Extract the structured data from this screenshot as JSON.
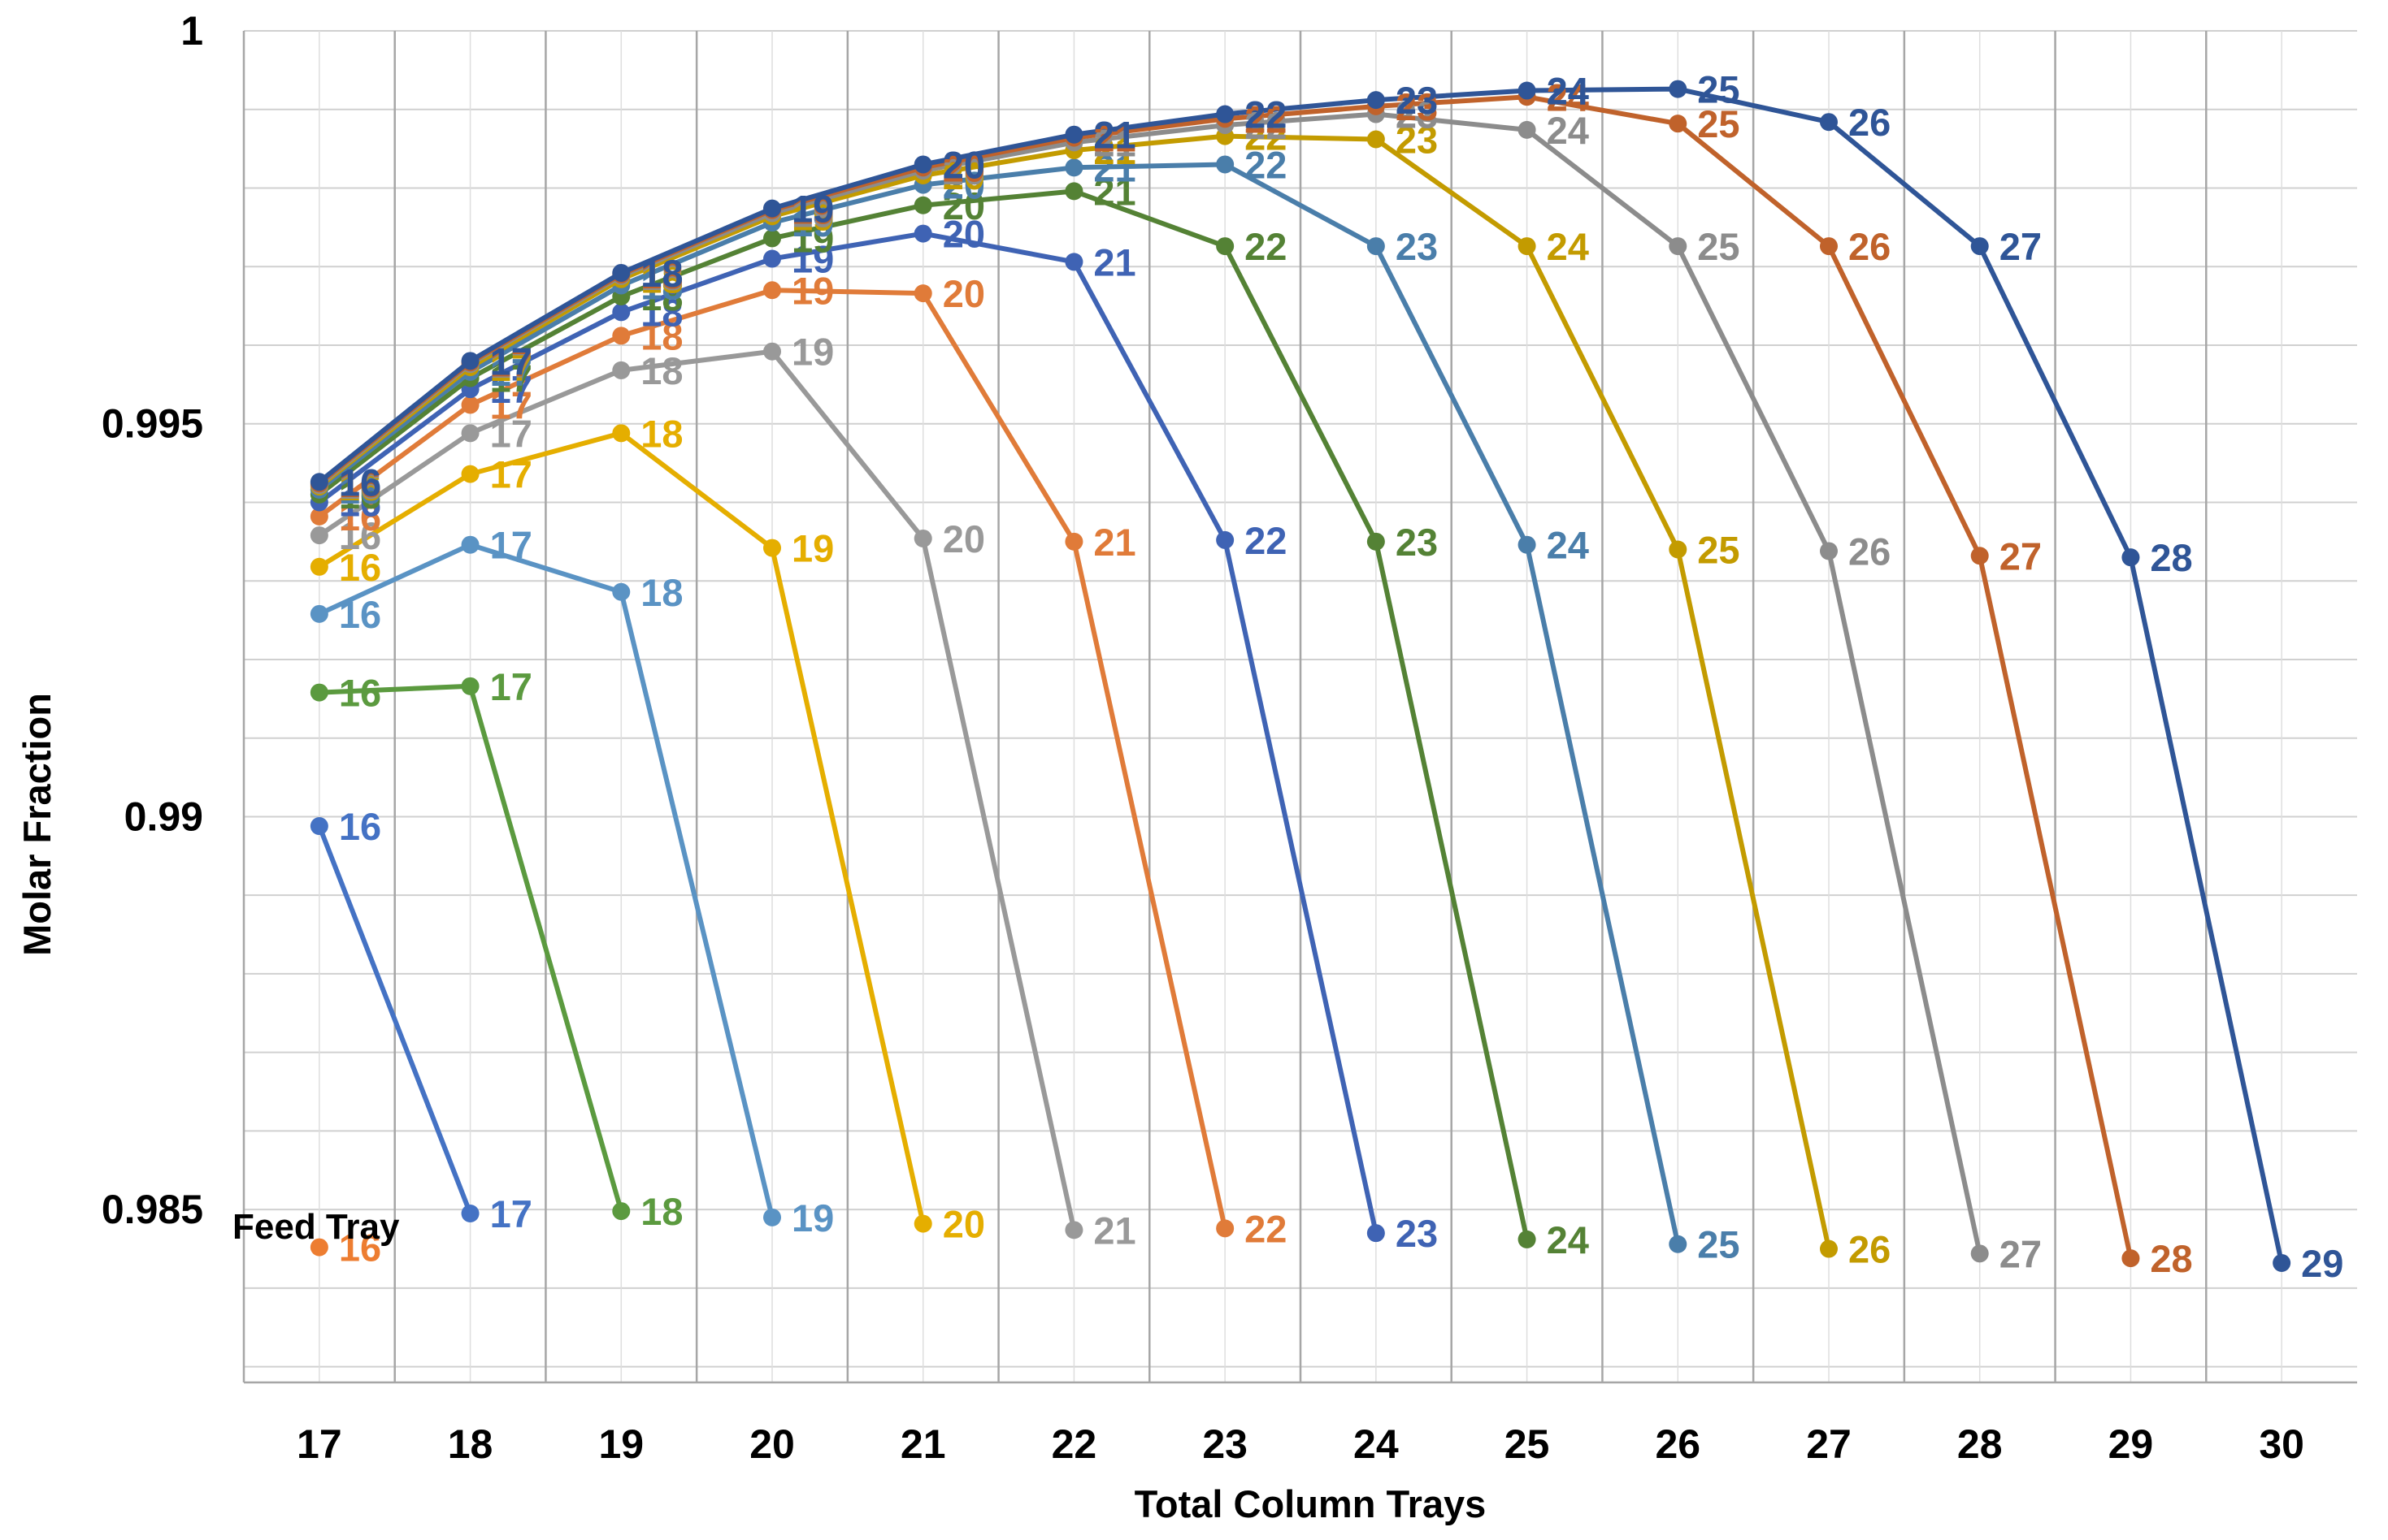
{
  "chart_data": {
    "type": "line",
    "xlabel": "Total Column Trays",
    "ylabel": "Molar Fraction",
    "xlim": [
      16.5,
      30.5
    ],
    "ylim": [
      0.9828,
      1.0
    ],
    "x_ticks": [
      "17",
      "18",
      "19",
      "20",
      "21",
      "22",
      "23",
      "24",
      "25",
      "26",
      "27",
      "28",
      "29",
      "30"
    ],
    "y_ticks": [
      {
        "value": 1.0,
        "label": "1"
      },
      {
        "value": 0.995,
        "label": "0.995"
      },
      {
        "value": 0.99,
        "label": "0.99"
      },
      {
        "value": 0.985,
        "label": "0.985"
      }
    ],
    "grid": true,
    "annotation": "Feed Tray",
    "series": [
      {
        "color": "#4472C4",
        "x": [
          17,
          18
        ],
        "y": [
          0.98988,
          0.98495
        ],
        "labels": [
          "16",
          "17"
        ]
      },
      {
        "color": "#5B9A3F",
        "x": [
          17,
          18,
          19
        ],
        "y": [
          0.99158,
          0.99166,
          0.98498
        ],
        "labels": [
          "16",
          "17",
          "18"
        ]
      },
      {
        "color": "#5A93C4",
        "x": [
          17,
          18,
          19,
          20
        ],
        "y": [
          0.99258,
          0.99346,
          0.99286,
          0.9849
        ],
        "labels": [
          "16",
          "17",
          "18",
          "19"
        ]
      },
      {
        "color": "#E5AE00",
        "x": [
          17,
          18,
          19,
          20,
          21
        ],
        "y": [
          0.99318,
          0.99436,
          0.99488,
          0.99342,
          0.98482
        ],
        "labels": [
          "16",
          "17",
          "18",
          "19",
          "20"
        ]
      },
      {
        "color": "#999999",
        "x": [
          17,
          18,
          19,
          20,
          21,
          22
        ],
        "y": [
          0.99358,
          0.99488,
          0.99568,
          0.99592,
          0.99354,
          0.98474
        ],
        "labels": [
          "16",
          "17",
          "18",
          "19",
          "20",
          "21"
        ]
      },
      {
        "color": "#E07B39",
        "x": [
          17,
          18,
          19,
          20,
          21,
          22,
          23
        ],
        "y": [
          0.99382,
          0.99524,
          0.99612,
          0.9967,
          0.99666,
          0.9935,
          0.98476
        ],
        "labels": [
          "16",
          "17",
          "18",
          "19",
          "20",
          "21",
          "22"
        ]
      },
      {
        "color": "#3F63B4",
        "x": [
          17,
          18,
          19,
          20,
          21,
          22,
          23,
          24
        ],
        "y": [
          0.994,
          0.99544,
          0.99642,
          0.9971,
          0.99742,
          0.99706,
          0.99352,
          0.9847
        ],
        "labels": [
          "16",
          "17",
          "18",
          "19",
          "20",
          "21",
          "22",
          "23"
        ]
      },
      {
        "color": "#548235",
        "x": [
          17,
          18,
          19,
          20,
          21,
          22,
          23,
          24,
          25
        ],
        "y": [
          0.9941,
          0.99558,
          0.99662,
          0.99736,
          0.99778,
          0.99796,
          0.99726,
          0.9935,
          0.98462
        ],
        "labels": [
          "16",
          "17",
          "18",
          "19",
          "20",
          "21",
          "22",
          "23",
          "24"
        ]
      },
      {
        "color": "#4A7EAA",
        "x": [
          17,
          18,
          19,
          20,
          21,
          22,
          23,
          24,
          25,
          26
        ],
        "y": [
          0.99416,
          0.99566,
          0.99676,
          0.99756,
          0.99804,
          0.99826,
          0.9983,
          0.99726,
          0.99346,
          0.98456
        ],
        "labels": [
          "16",
          "17",
          "18",
          "19",
          "20",
          "21",
          "22",
          "23",
          "24",
          "25"
        ]
      },
      {
        "color": "#C39B00",
        "x": [
          17,
          18,
          19,
          20,
          21,
          22,
          23,
          24,
          25,
          26,
          27
        ],
        "y": [
          0.9942,
          0.99572,
          0.99684,
          0.99764,
          0.99816,
          0.99848,
          0.99866,
          0.99862,
          0.99726,
          0.9934,
          0.9845
        ],
        "labels": [
          "16",
          "17",
          "18",
          "19",
          "20",
          "21",
          "22",
          "23",
          "24",
          "25",
          "26"
        ]
      },
      {
        "color": "#8C8C8C",
        "x": [
          17,
          18,
          19,
          20,
          21,
          22,
          23,
          24,
          25,
          26,
          27,
          28
        ],
        "y": [
          0.99422,
          0.99576,
          0.99688,
          0.99768,
          0.99822,
          0.99858,
          0.9988,
          0.99894,
          0.99874,
          0.99726,
          0.99338,
          0.98444
        ],
        "labels": [
          "16",
          "17",
          "18",
          "19",
          "20",
          "21",
          "22",
          "23",
          "24",
          "25",
          "26",
          "27"
        ]
      },
      {
        "color": "#C0622B",
        "x": [
          17,
          18,
          19,
          20,
          21,
          22,
          23,
          24,
          25,
          26,
          27,
          28,
          29
        ],
        "y": [
          0.99424,
          0.99578,
          0.9969,
          0.99772,
          0.99826,
          0.99864,
          0.99888,
          0.99904,
          0.99916,
          0.99882,
          0.99726,
          0.99332,
          0.98438
        ],
        "labels": [
          "16",
          "17",
          "18",
          "19",
          "20",
          "21",
          "22",
          "23",
          "24",
          "25",
          "26",
          "27",
          "28"
        ]
      },
      {
        "color": "#2F5597",
        "x": [
          17,
          18,
          19,
          20,
          21,
          22,
          23,
          24,
          25,
          26,
          27,
          28,
          29,
          30
        ],
        "y": [
          0.99426,
          0.9958,
          0.99692,
          0.99774,
          0.9983,
          0.99868,
          0.99894,
          0.99912,
          0.99924,
          0.99926,
          0.99884,
          0.99726,
          0.9933,
          0.98432
        ],
        "labels": [
          "16",
          "17",
          "18",
          "19",
          "20",
          "21",
          "22",
          "23",
          "24",
          "25",
          "26",
          "27",
          "28",
          "29"
        ]
      }
    ],
    "isolated_points": [
      {
        "color": "#ED7D31",
        "x": 17,
        "y": 0.98452,
        "label": "16"
      }
    ]
  }
}
